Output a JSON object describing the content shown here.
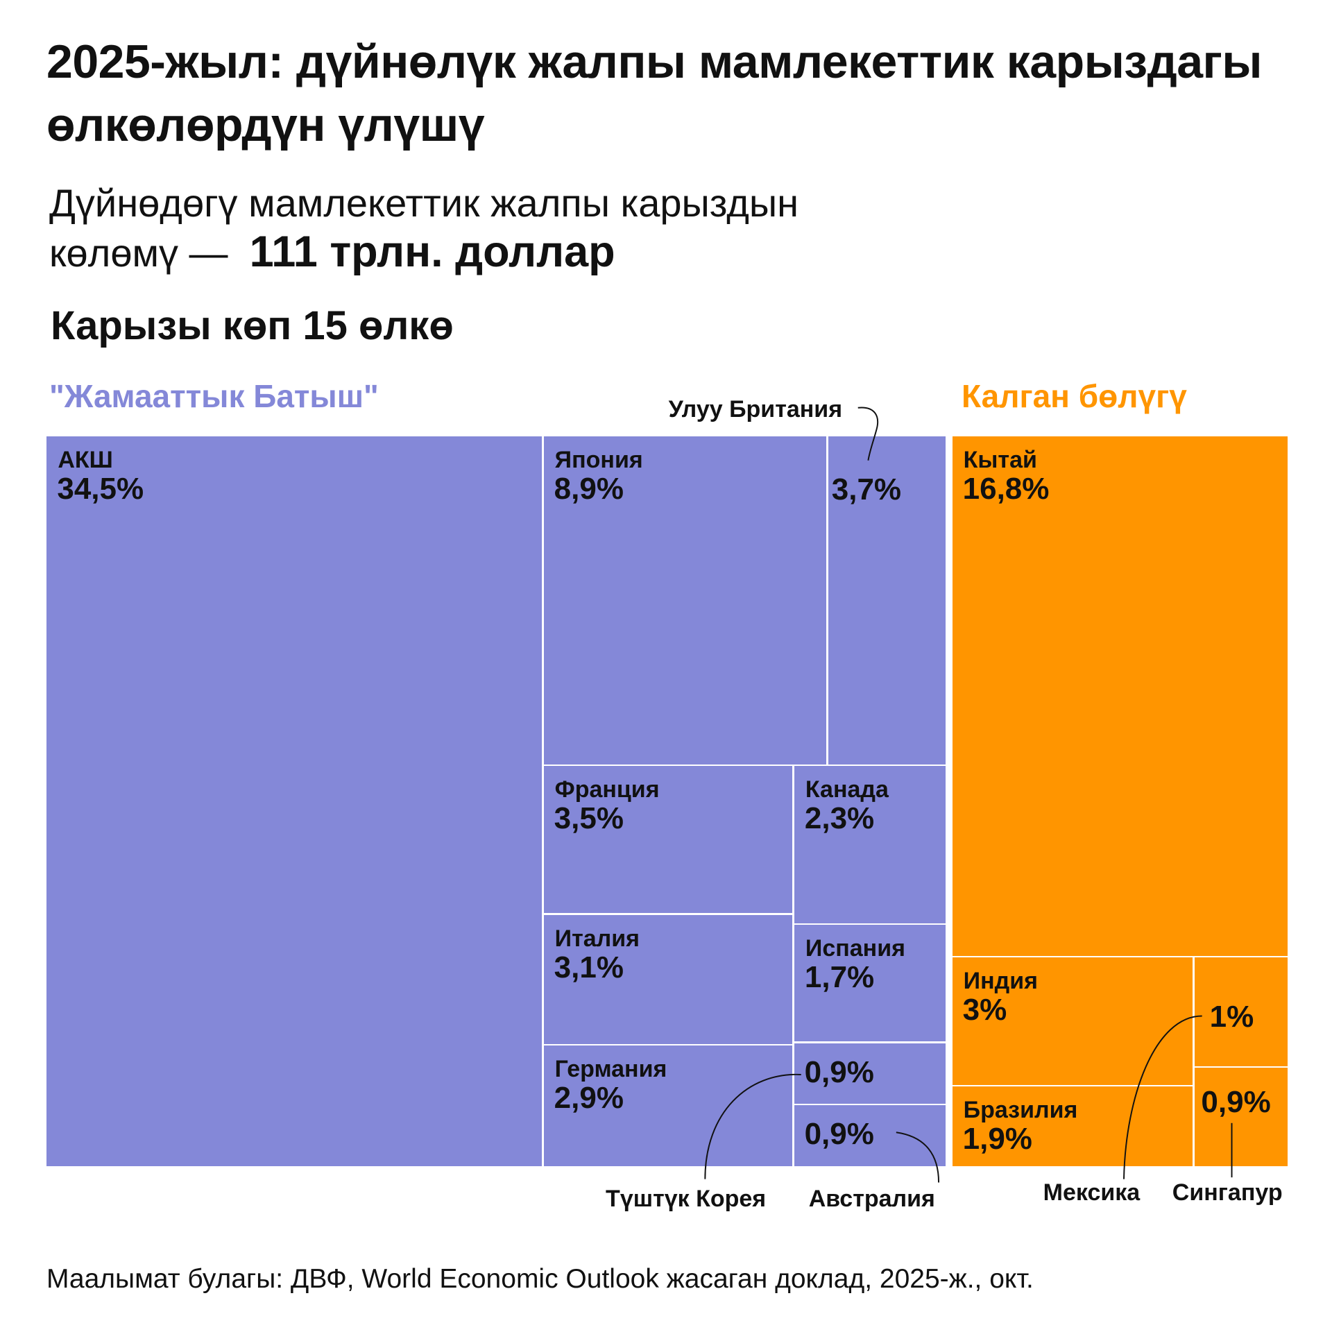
{
  "title": "2025-жыл: дүйнөлүк жалпы мамлекеттик карыздагы өлкөлөрдүн үлүшү",
  "subtitle": {
    "text": "Дүйнөдөгү мамлекеттик жалпы карыздын көлөмү —",
    "value": "111 трлн. доллар"
  },
  "section_heading": "Карызы көп 15 өлкө",
  "source": "Маалымат булагы: ДВФ, World Economic Outlook жасаган доклад, 2025-ж., окт.",
  "chart_data": {
    "type": "treemap",
    "unit": "%",
    "groups": [
      {
        "name": "\"Жамааттык Батыш\"",
        "color": "#8488D8",
        "items": [
          {
            "name": "АКШ",
            "value": "34,5%"
          },
          {
            "name": "Япония",
            "value": "8,9%"
          },
          {
            "name": "Улуу Британия",
            "value": "3,7%"
          },
          {
            "name": "Франция",
            "value": "3,5%"
          },
          {
            "name": "Канада",
            "value": "2,3%"
          },
          {
            "name": "Италия",
            "value": "3,1%"
          },
          {
            "name": "Испания",
            "value": "1,7%"
          },
          {
            "name": "Германия",
            "value": "2,9%"
          },
          {
            "name": "Түштүк Корея",
            "value": "0,9%"
          },
          {
            "name": "Австралия",
            "value": "0,9%"
          }
        ]
      },
      {
        "name": "Калган бөлүгү",
        "color": "#FF9500",
        "items": [
          {
            "name": "Кытай",
            "value": "16,8%"
          },
          {
            "name": "Индия",
            "value": "3%"
          },
          {
            "name": "Бразилия",
            "value": "1,9%"
          },
          {
            "name": "Мексика",
            "value": "1%"
          },
          {
            "name": "Сингапур",
            "value": "0,9%"
          }
        ]
      }
    ]
  }
}
